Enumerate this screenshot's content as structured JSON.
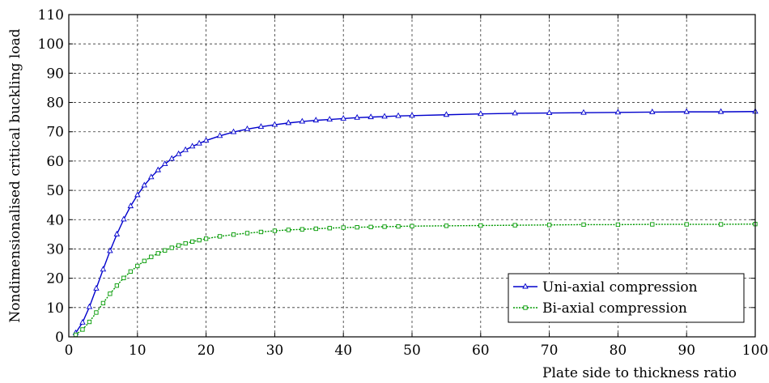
{
  "chart_data": {
    "type": "line",
    "xlabel": "Plate side to thickness ratio",
    "ylabel": "Nondimensionalised critical buckling load",
    "xlim": [
      0,
      100
    ],
    "ylim": [
      0,
      110
    ],
    "xticks": [
      "0",
      "10",
      "20",
      "30",
      "40",
      "50",
      "60",
      "70",
      "80",
      "90",
      "100"
    ],
    "yticks": [
      "0",
      "10",
      "20",
      "30",
      "40",
      "50",
      "60",
      "70",
      "80",
      "90",
      "100",
      "110"
    ],
    "grid": true,
    "legend_position": "bottom-right",
    "series": [
      {
        "name": "Uni-axial compression",
        "color": "#0000cc",
        "marker": "triangle",
        "x": [
          1,
          2,
          3,
          4,
          5,
          6,
          7,
          8,
          9,
          10,
          11,
          12,
          13,
          14,
          15,
          16,
          17,
          18,
          19,
          20,
          22,
          24,
          26,
          28,
          30,
          32,
          34,
          36,
          38,
          40,
          42,
          44,
          46,
          48,
          50,
          55,
          60,
          65,
          70,
          75,
          80,
          85,
          90,
          95,
          100
        ],
        "y": [
          1.3,
          4.9,
          10.2,
          16.5,
          23.0,
          29.3,
          35.0,
          40.1,
          44.6,
          48.4,
          51.7,
          54.5,
          56.9,
          59.0,
          60.8,
          62.4,
          63.8,
          65.0,
          66.0,
          67.0,
          68.6,
          69.9,
          70.9,
          71.7,
          72.4,
          73.0,
          73.5,
          73.9,
          74.2,
          74.5,
          74.8,
          75.0,
          75.2,
          75.4,
          75.5,
          75.8,
          76.1,
          76.3,
          76.4,
          76.5,
          76.6,
          76.7,
          76.8,
          76.8,
          76.9
        ]
      },
      {
        "name": "Bi-axial compression",
        "color": "#009900",
        "marker": "square",
        "x": [
          1,
          2,
          3,
          4,
          5,
          6,
          7,
          8,
          9,
          10,
          11,
          12,
          13,
          14,
          15,
          16,
          17,
          18,
          19,
          20,
          22,
          24,
          26,
          28,
          30,
          32,
          34,
          36,
          38,
          40,
          42,
          44,
          46,
          48,
          50,
          55,
          60,
          65,
          70,
          75,
          80,
          85,
          90,
          95,
          100
        ],
        "y": [
          0.7,
          2.5,
          5.1,
          8.3,
          11.5,
          14.7,
          17.5,
          20.1,
          22.3,
          24.2,
          25.9,
          27.3,
          28.5,
          29.5,
          30.4,
          31.2,
          31.9,
          32.5,
          33.0,
          33.5,
          34.3,
          34.9,
          35.4,
          35.8,
          36.2,
          36.5,
          36.7,
          36.9,
          37.1,
          37.3,
          37.4,
          37.5,
          37.6,
          37.7,
          37.8,
          37.9,
          38.0,
          38.1,
          38.2,
          38.3,
          38.3,
          38.4,
          38.4,
          38.4,
          38.5
        ]
      }
    ]
  }
}
